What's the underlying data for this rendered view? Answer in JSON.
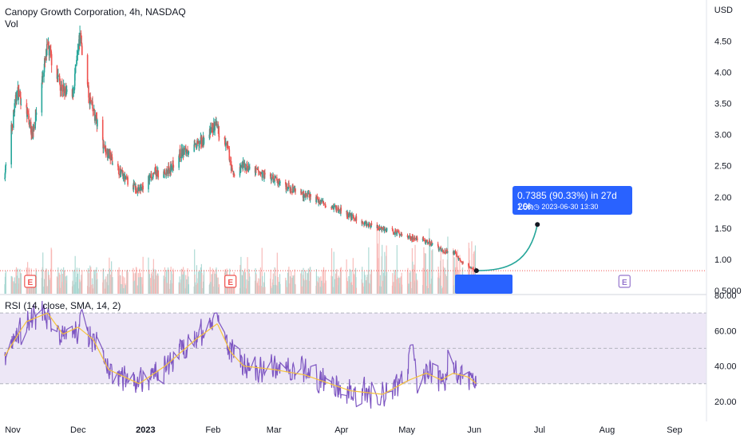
{
  "header": {
    "title": "Canopy Growth Corporation, 4h, NASDAQ",
    "volume_label": "Vol",
    "currency": "USD"
  },
  "indicator": {
    "label": "RSI (14, close, SMA, 14, 2)"
  },
  "colors": {
    "up": "#26a69a",
    "down": "#ef5350",
    "rsi_line": "#7e57c2",
    "rsi_sma": "#f6c43b",
    "rsi_band": "#ede7f6",
    "projection": "#26a69a",
    "accent": "#2962ff",
    "earnings": "#ef5350",
    "earnings_future": "#9575cd"
  },
  "projection": {
    "change_text": "0.7385 (90.33%) in 27d 20h",
    "target_text": "1.56 ◷ 2023-06-30  13:30"
  },
  "earnings_icon": "E",
  "lightning_icon": "⚡",
  "chart_data": {
    "type": "candlestick",
    "x_ticks": [
      "Nov",
      "Dec",
      "2023",
      "Feb",
      "Mar",
      "Apr",
      "May",
      "Jun",
      "Jul",
      "Aug",
      "Sep"
    ],
    "price_ticks": [
      "4.50",
      "4.00",
      "3.50",
      "3.00",
      "2.50",
      "2.00",
      "1.50",
      "1.00",
      "0.5000"
    ],
    "rsi_ticks": [
      "80.00",
      "60.00",
      "40.00",
      "20.00"
    ],
    "price_range": [
      0.45,
      4.9
    ],
    "rsi_range": [
      10,
      80
    ],
    "rsi_bands": [
      30,
      50,
      70
    ],
    "last_price": 0.82,
    "projection_target": 1.56,
    "price_anchors": [
      {
        "d": "2022-10-28",
        "p": 2.3
      },
      {
        "d": "2022-11-03",
        "p": 3.7
      },
      {
        "d": "2022-11-07",
        "p": 3.4
      },
      {
        "d": "2022-11-10",
        "p": 3.0
      },
      {
        "d": "2022-11-17",
        "p": 4.4
      },
      {
        "d": "2022-11-23",
        "p": 3.8
      },
      {
        "d": "2022-11-28",
        "p": 3.5
      },
      {
        "d": "2022-12-02",
        "p": 4.6
      },
      {
        "d": "2022-12-06",
        "p": 3.6
      },
      {
        "d": "2022-12-13",
        "p": 2.8
      },
      {
        "d": "2022-12-22",
        "p": 2.3
      },
      {
        "d": "2022-12-29",
        "p": 2.1
      },
      {
        "d": "2023-01-05",
        "p": 2.4
      },
      {
        "d": "2023-01-10",
        "p": 2.35
      },
      {
        "d": "2023-01-17",
        "p": 2.7
      },
      {
        "d": "2023-01-24",
        "p": 2.8
      },
      {
        "d": "2023-01-30",
        "p": 3.0
      },
      {
        "d": "2023-02-02",
        "p": 3.15
      },
      {
        "d": "2023-02-08",
        "p": 2.75
      },
      {
        "d": "2023-02-10",
        "p": 2.35
      },
      {
        "d": "2023-02-15",
        "p": 2.5
      },
      {
        "d": "2023-02-28",
        "p": 2.3
      },
      {
        "d": "2023-03-14",
        "p": 2.05
      },
      {
        "d": "2023-03-28",
        "p": 1.85
      },
      {
        "d": "2023-04-10",
        "p": 1.6
      },
      {
        "d": "2023-04-24",
        "p": 1.45
      },
      {
        "d": "2023-05-03",
        "p": 1.35
      },
      {
        "d": "2023-05-10",
        "p": 1.3
      },
      {
        "d": "2023-05-17",
        "p": 1.15
      },
      {
        "d": "2023-05-23",
        "p": 1.1
      },
      {
        "d": "2023-05-26",
        "p": 0.95
      },
      {
        "d": "2023-06-02",
        "p": 0.82
      }
    ],
    "rsi_sma_anchors": [
      {
        "d": "2022-10-28",
        "v": 45
      },
      {
        "d": "2022-11-07",
        "v": 65
      },
      {
        "d": "2022-11-17",
        "v": 70
      },
      {
        "d": "2022-11-24",
        "v": 58
      },
      {
        "d": "2022-12-01",
        "v": 62
      },
      {
        "d": "2022-12-08",
        "v": 55
      },
      {
        "d": "2022-12-15",
        "v": 38
      },
      {
        "d": "2022-12-29",
        "v": 30
      },
      {
        "d": "2023-01-10",
        "v": 40
      },
      {
        "d": "2023-01-24",
        "v": 55
      },
      {
        "d": "2023-02-03",
        "v": 64
      },
      {
        "d": "2023-02-09",
        "v": 48
      },
      {
        "d": "2023-02-15",
        "v": 40
      },
      {
        "d": "2023-03-01",
        "v": 38
      },
      {
        "d": "2023-03-15",
        "v": 35
      },
      {
        "d": "2023-04-05",
        "v": 26
      },
      {
        "d": "2023-04-20",
        "v": 24
      },
      {
        "d": "2023-05-02",
        "v": 32
      },
      {
        "d": "2023-05-10",
        "v": 36
      },
      {
        "d": "2023-05-17",
        "v": 32
      },
      {
        "d": "2023-05-22",
        "v": 36
      },
      {
        "d": "2023-05-29",
        "v": 34
      },
      {
        "d": "2023-06-02",
        "v": 30
      }
    ],
    "rsi_spikes": [
      {
        "d": "2022-12-03",
        "v": 72
      },
      {
        "d": "2023-02-02",
        "v": 70
      },
      {
        "d": "2023-05-03",
        "v": 52
      },
      {
        "d": "2023-05-21",
        "v": 57
      },
      {
        "d": "2023-04-18",
        "v": 18
      }
    ],
    "earnings_dates": [
      "2022-11-09",
      "2023-02-09",
      "2023-05-31"
    ],
    "earnings_future_dates": [
      "2023-08-09"
    ]
  }
}
